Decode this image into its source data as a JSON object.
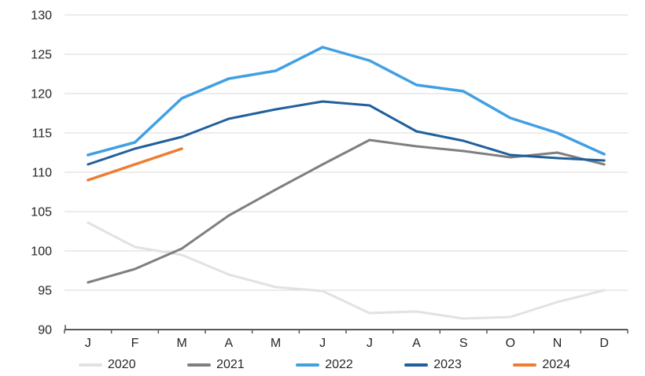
{
  "chart_data": {
    "type": "line",
    "title": "",
    "xlabel": "",
    "ylabel": "",
    "x_categories": [
      "J",
      "F",
      "M",
      "A",
      "M",
      "J",
      "J",
      "A",
      "S",
      "O",
      "N",
      "D"
    ],
    "ylim": [
      90,
      130
    ],
    "ytick_step": 5,
    "y_tick_labels": [
      "90",
      "95",
      "100",
      "105",
      "110",
      "115",
      "120",
      "125",
      "130"
    ],
    "grid": true,
    "legend_position": "bottom",
    "series": [
      {
        "name": "2020",
        "color": "#e2e2e2",
        "width": 3,
        "values": [
          103.6,
          100.5,
          99.5,
          97.0,
          95.4,
          94.9,
          92.1,
          92.3,
          91.4,
          91.6,
          93.5,
          95.0
        ]
      },
      {
        "name": "2021",
        "color": "#7f7f7f",
        "width": 3,
        "values": [
          96.0,
          97.7,
          100.3,
          104.5,
          107.8,
          111.0,
          114.1,
          113.3,
          112.7,
          111.9,
          112.5,
          111.0
        ]
      },
      {
        "name": "2022",
        "color": "#41a0e2",
        "width": 3.5,
        "values": [
          112.2,
          113.8,
          119.4,
          121.9,
          122.9,
          125.9,
          124.2,
          121.1,
          120.3,
          116.9,
          115.0,
          112.3
        ]
      },
      {
        "name": "2023",
        "color": "#215f9c",
        "width": 3,
        "values": [
          111.0,
          113.0,
          114.5,
          116.8,
          118.0,
          119.0,
          118.5,
          115.2,
          114.0,
          112.2,
          111.8,
          111.5
        ]
      },
      {
        "name": "2024",
        "color": "#ed7d31",
        "width": 3.5,
        "values": [
          109.0,
          111.0,
          113.0,
          null,
          null,
          null,
          null,
          null,
          null,
          null,
          null,
          null
        ]
      }
    ]
  },
  "colors": {
    "background": "#ffffff",
    "gridline": "#d9d9d9",
    "axis": "#595959",
    "text": "#262626"
  }
}
